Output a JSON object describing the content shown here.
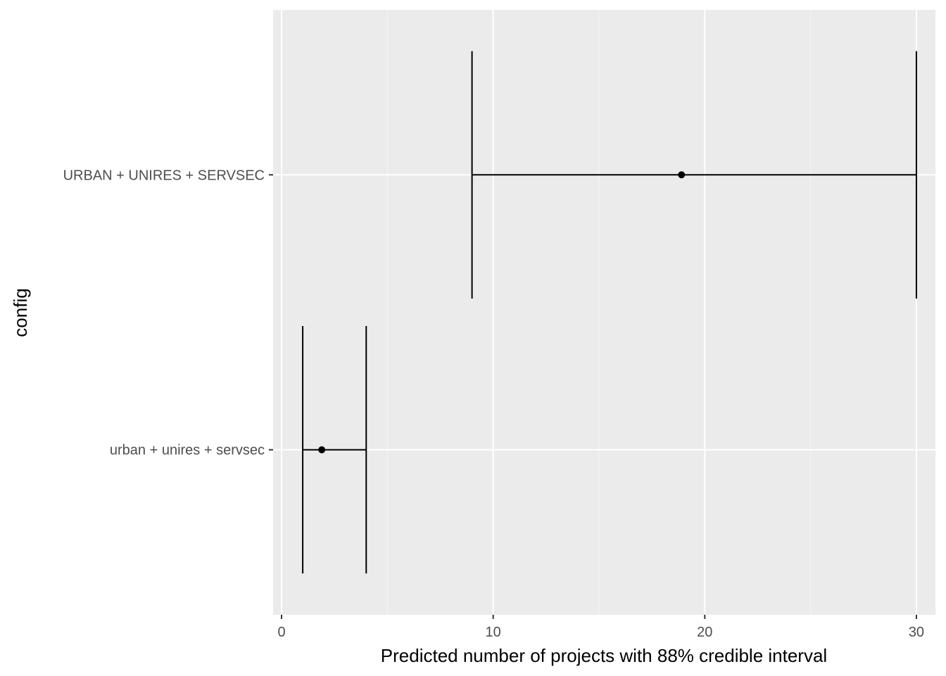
{
  "chart_data": {
    "type": "errorbar-pointrange",
    "xlabel": "Predicted number of projects with 88% credible interval",
    "ylabel": "config",
    "xlim": [
      -0.4,
      30.9
    ],
    "x_ticks": [
      0,
      10,
      20,
      30
    ],
    "x_tick_labels": [
      "0",
      "10",
      "20",
      "30"
    ],
    "grid": true,
    "categories": [
      "urban + unires + servsec",
      "URBAN + UNIRES + SERVSEC"
    ],
    "series": [
      {
        "category": "urban + unires + servsec",
        "estimate": 1.9,
        "lower": 1,
        "upper": 4
      },
      {
        "category": "URBAN + UNIRES + SERVSEC",
        "estimate": 18.9,
        "lower": 9,
        "upper": 30
      }
    ],
    "colors": {
      "panel_background": "#ebebeb",
      "grid_major": "#ffffff",
      "grid_minor": "#f5f5f5",
      "marks": "#000000",
      "tick_text": "#4d4d4d",
      "ticks": "#333333"
    }
  }
}
